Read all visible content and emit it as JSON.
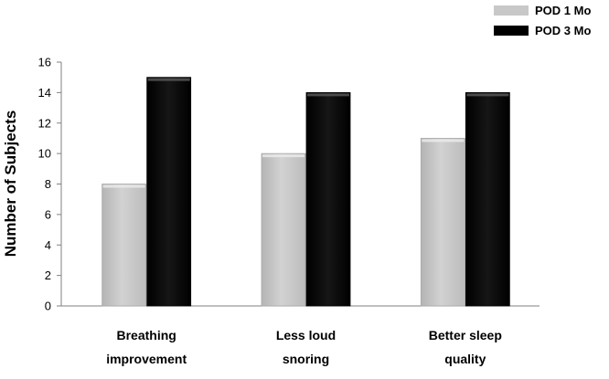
{
  "chart_data": {
    "type": "bar",
    "categories": [
      [
        "Breathing",
        "improvement"
      ],
      [
        "Less loud",
        "snoring"
      ],
      [
        "Better sleep",
        "quality"
      ]
    ],
    "series": [
      {
        "name": "POD 1 Mo",
        "values": [
          8,
          10,
          11
        ],
        "color": "#c8c8c8"
      },
      {
        "name": "POD 3 Mo",
        "values": [
          15,
          14,
          14
        ],
        "color": "#0a0a0a"
      }
    ],
    "ylabel": "Number of Subjects",
    "ylim": [
      0,
      16
    ],
    "yticks": [
      "0",
      "2",
      "4",
      "6",
      "8",
      "10",
      "12",
      "14",
      "16"
    ],
    "grid": false,
    "legend_position": "top-right"
  }
}
